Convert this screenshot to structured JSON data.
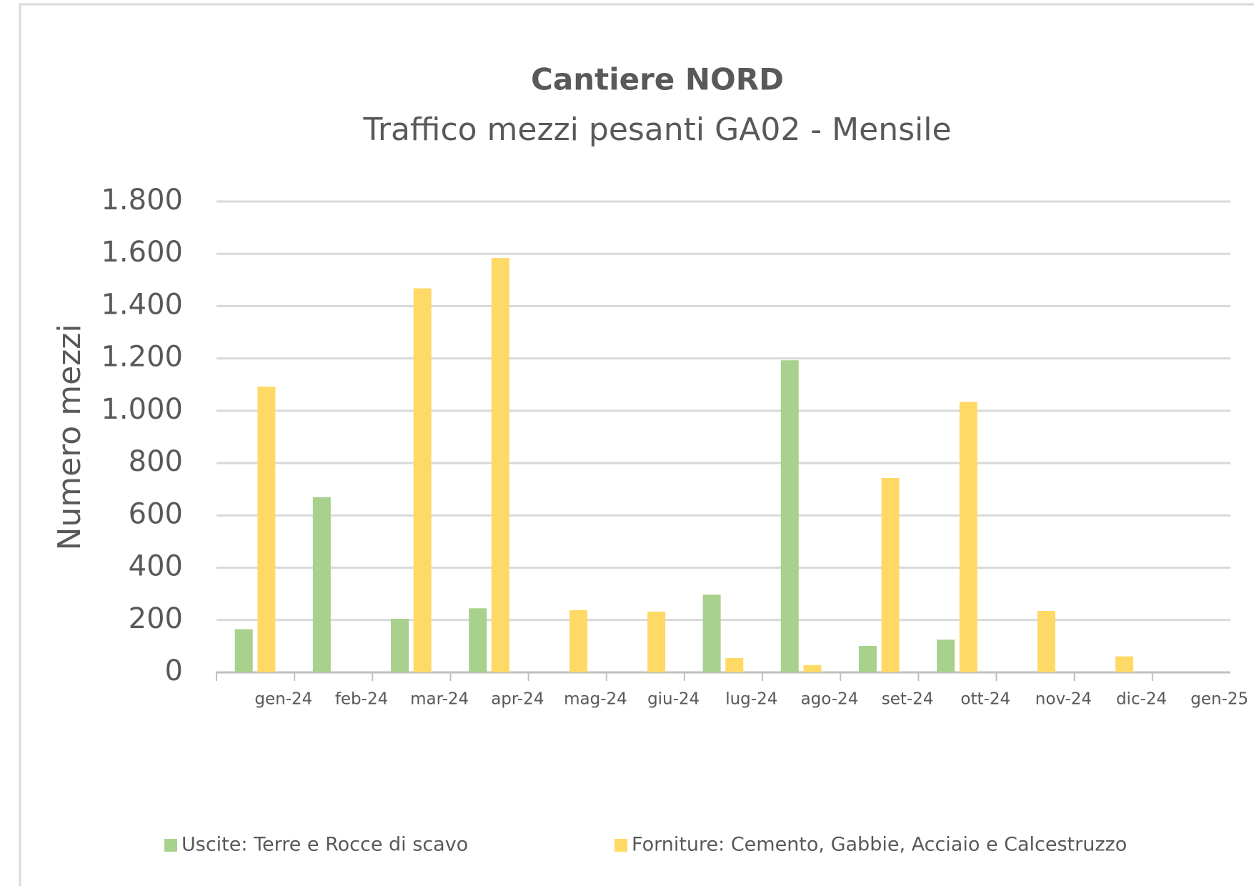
{
  "chart_data": {
    "type": "bar",
    "title": "Cantiere NORD",
    "subtitle": "Traffico mezzi pesanti GA02 - Mensile",
    "y_label": "Numero mezzi",
    "categories": [
      "gen-24",
      "feb-24",
      "mar-24",
      "apr-24",
      "mag-24",
      "giu-24",
      "lug-24",
      "ago-24",
      "set-24",
      "ott-24",
      "nov-24",
      "dic-24",
      "gen-25"
    ],
    "series": [
      {
        "name": "Uscite: Terre e Rocce di scavo",
        "color": "#a9d18e",
        "values": [
          165,
          670,
          205,
          245,
          0,
          0,
          297,
          1193,
          101,
          125,
          0,
          0,
          0
        ]
      },
      {
        "name": "Forniture: Cemento, Gabbie, Acciaio e Calcestruzzo",
        "color": "#ffd966",
        "values": [
          1092,
          0,
          1468,
          1584,
          238,
          232,
          55,
          28,
          743,
          1034,
          235,
          61,
          0
        ]
      }
    ],
    "ylim": [
      0,
      1800
    ],
    "yticks": [
      0,
      200,
      400,
      600,
      800,
      {
        "value": 1000,
        "label": "1.000"
      },
      {
        "value": 1200,
        "label": "1.200"
      },
      {
        "value": 1400,
        "label": "1.400"
      },
      {
        "value": 1600,
        "label": "1.600"
      },
      {
        "value": 1800,
        "label": "1.800"
      }
    ],
    "grid": true,
    "legend": "bottom"
  }
}
